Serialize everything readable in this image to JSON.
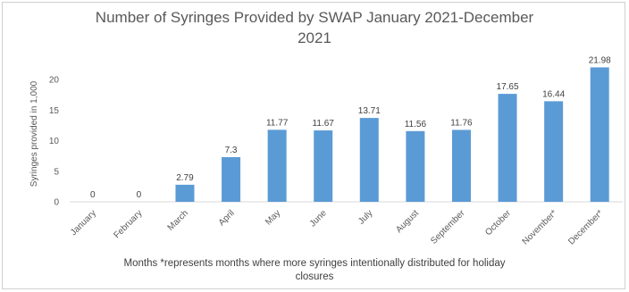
{
  "chart_data": {
    "type": "bar",
    "title_line1": "Number of Syringes Provided by SWAP January 2021-December",
    "title_line2": "2021",
    "ylabel": "Syringes provided in 1,000",
    "xlabel_line1": "Months  *represents  months where more syringes intentionally distributed for holiday",
    "xlabel_line2": "closures",
    "categories": [
      "January",
      "February",
      "March",
      "April",
      "May",
      "June",
      "July",
      "August",
      "September",
      "October",
      "November*",
      "December*"
    ],
    "values": [
      0,
      0,
      2.79,
      7.3,
      11.77,
      11.67,
      13.71,
      11.56,
      11.76,
      17.65,
      16.44,
      21.98
    ],
    "value_labels": [
      "0",
      "0",
      "2.79",
      "7.3",
      "11.77",
      "11.67",
      "13.71",
      "11.56",
      "11.76",
      "17.65",
      "16.44",
      "21.98"
    ],
    "y_ticks": [
      0,
      5,
      10,
      15,
      20
    ],
    "ylim": [
      0,
      22
    ],
    "grid": false,
    "legend": "none",
    "bar_color": "#5b9bd5"
  }
}
